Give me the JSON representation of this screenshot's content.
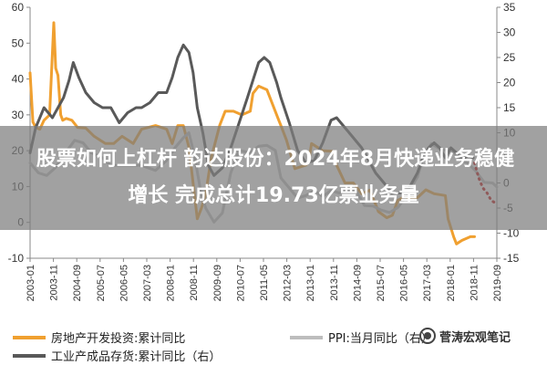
{
  "chart_data": {
    "type": "line",
    "left_axis": {
      "ylim": [
        -10,
        60
      ],
      "ticks": [
        "-10",
        "0",
        "10",
        "20",
        "30",
        "40",
        "50",
        "60"
      ]
    },
    "right_axis": {
      "ylim": [
        -15,
        35
      ],
      "ticks": [
        "-15",
        "-10",
        "-5",
        "0",
        "5",
        "10",
        "15",
        "20",
        "25",
        "30",
        "35"
      ]
    },
    "x_ticks": [
      "2003-01",
      "2003-11",
      "2004-09",
      "2005-07",
      "2006-05",
      "2007-03",
      "2008-01",
      "2008-11",
      "2009-09",
      "2010-07",
      "2011-05",
      "2012-03",
      "2013-01",
      "2013-11",
      "2014-09",
      "2015-07",
      "2016-05",
      "2017-03",
      "2018-01",
      "2018-11",
      "2019-09"
    ],
    "x_range": [
      2003.0,
      2019.75
    ],
    "series": [
      {
        "name": "房地产开发投资:累计同比",
        "axis": "left",
        "color": "#f0a030",
        "style": "solid",
        "x": [
          2003.0,
          2003.1,
          2003.2,
          2003.35,
          2003.5,
          2003.7,
          2003.85,
          2003.92,
          2004.0,
          2004.1,
          2004.17,
          2004.3,
          2004.5,
          2004.7,
          2005.0,
          2005.3,
          2005.7,
          2006.0,
          2006.3,
          2006.7,
          2007.0,
          2007.5,
          2007.9,
          2008.1,
          2008.3,
          2008.5,
          2008.7,
          2008.85,
          2009.0,
          2009.15,
          2009.3,
          2009.5,
          2009.8,
          2010.0,
          2010.3,
          2010.6,
          2010.9,
          2011.0,
          2011.2,
          2011.5,
          2011.9,
          2012.0,
          2012.2,
          2012.5,
          2012.9,
          2013.0,
          2013.1,
          2013.5,
          2013.9,
          2014.0,
          2014.3,
          2014.6,
          2014.9,
          2015.2,
          2015.5,
          2015.8,
          2016.0,
          2016.2,
          2016.4,
          2016.9,
          2017.2,
          2017.5,
          2017.9,
          2018.0,
          2018.2,
          2018.3,
          2018.5,
          2018.8,
          2018.95
        ],
        "values": [
          41.7,
          28.0,
          26.5,
          26.0,
          28.5,
          30.0,
          55.7,
          43.0,
          41.0,
          30.0,
          28.5,
          29.0,
          28.5,
          26.5,
          26.3,
          24.0,
          22.0,
          22.0,
          24.0,
          22.0,
          26.0,
          27.0,
          26.0,
          22.0,
          27.0,
          27.0,
          21.0,
          11.0,
          1.0,
          4.0,
          8.0,
          18.0,
          27.0,
          31.0,
          31.0,
          30.0,
          31.0,
          36.0,
          38.0,
          37.0,
          29.0,
          27.0,
          23.0,
          15.0,
          16.0,
          17.0,
          22.0,
          20.0,
          19.8,
          16.0,
          11.0,
          11.0,
          8.0,
          9.0,
          3.0,
          1.3,
          2.0,
          6.2,
          7.0,
          6.9,
          9.1,
          8.0,
          7.5,
          1.0,
          -4.0,
          -6.0,
          -5.0,
          -4.0,
          -4.0
        ]
      },
      {
        "name": "PPI:当月同比",
        "axis": "right",
        "color": "#bdbdbd",
        "style": "solid",
        "x": [
          2003.0,
          2003.3,
          2003.6,
          2003.9,
          2004.2,
          2004.6,
          2004.9,
          2005.2,
          2005.6,
          2005.9,
          2006.3,
          2006.7,
          2007.0,
          2007.5,
          2007.9,
          2008.2,
          2008.5,
          2008.7,
          2008.9,
          2009.1,
          2009.3,
          2009.6,
          2009.9,
          2010.2,
          2010.5,
          2010.9,
          2011.2,
          2011.5,
          2011.8,
          2012.0,
          2012.3,
          2012.6,
          2012.9,
          2013.2,
          2013.5,
          2013.8,
          2014.1,
          2014.4,
          2014.7,
          2015.0,
          2015.3,
          2015.6,
          2015.9,
          2016.2,
          2016.5,
          2016.9,
          2017.1,
          2017.4,
          2017.8,
          2018.1,
          2018.4,
          2018.7,
          2019.0,
          2019.3,
          2019.6,
          2019.75
        ],
        "values": [
          4.0,
          2.0,
          1.5,
          3.0,
          5.5,
          8.5,
          8.0,
          6.0,
          5.0,
          3.5,
          3.5,
          3.5,
          3.5,
          2.5,
          4.5,
          7.0,
          9.0,
          10.0,
          5.5,
          -1.0,
          -5.0,
          -7.8,
          -6.0,
          2.0,
          6.5,
          6.0,
          7.3,
          7.5,
          6.5,
          1.0,
          -1.0,
          -3.0,
          -2.5,
          -1.5,
          -2.7,
          -1.5,
          -2.0,
          -1.5,
          -1.5,
          -4.5,
          -4.6,
          -5.4,
          -5.9,
          -4.9,
          -2.6,
          1.2,
          5.0,
          7.8,
          6.5,
          6.9,
          4.7,
          4.0,
          2.3,
          0.1,
          0.0,
          -0.8
        ]
      },
      {
        "name": "工业产成品存货:累计同比（右）",
        "axis": "right",
        "color": "#595959",
        "style": "solid",
        "x": [
          2003.0,
          2003.2,
          2003.5,
          2003.8,
          2004.0,
          2004.2,
          2004.4,
          2004.55,
          2004.75,
          2005.0,
          2005.3,
          2005.6,
          2005.9,
          2006.2,
          2006.5,
          2006.8,
          2007.0,
          2007.3,
          2007.6,
          2007.9,
          2008.1,
          2008.3,
          2008.5,
          2008.7,
          2008.85,
          2009.0,
          2009.2,
          2009.4,
          2009.6,
          2009.9,
          2010.2,
          2010.5,
          2010.8,
          2011.0,
          2011.2,
          2011.4,
          2011.6,
          2011.85,
          2012.0,
          2012.3,
          2012.6,
          2012.9,
          2013.2,
          2013.5,
          2013.8,
          2014.0,
          2014.3,
          2014.6,
          2014.9,
          2015.1,
          2015.4,
          2015.7,
          2016.0,
          2016.3,
          2016.6,
          2016.9,
          2017.1,
          2017.3,
          2017.5,
          2017.7,
          2017.9,
          2018.1,
          2018.3,
          2018.5,
          2018.7,
          2018.9
        ],
        "values": [
          6.0,
          11.0,
          15.0,
          13.0,
          15.0,
          17.0,
          20.5,
          24.0,
          21.0,
          18.0,
          16.0,
          15.0,
          15.0,
          12.0,
          14.0,
          15.0,
          15.0,
          16.0,
          18.0,
          18.0,
          21.0,
          25.0,
          27.5,
          26.0,
          22.0,
          15.0,
          10.0,
          3.5,
          1.5,
          3.0,
          7.0,
          12.0,
          17.0,
          20.5,
          24.0,
          25.0,
          24.0,
          20.0,
          17.0,
          12.0,
          6.5,
          4.0,
          4.5,
          8.0,
          12.5,
          13.0,
          11.0,
          9.0,
          7.0,
          5.0,
          2.0,
          0.0,
          -2.0,
          -2.0,
          -1.0,
          2.0,
          5.0,
          7.0,
          8.0,
          7.0,
          5.0,
          7.0,
          6.0,
          4.5,
          5.5,
          5.0
        ]
      },
      {
        "name": "工业产成品存货:累计同比（右） 预测",
        "axis": "right",
        "color": "#c00000",
        "style": "dotted",
        "x": [
          2018.95,
          2019.1,
          2019.25,
          2019.4,
          2019.55,
          2019.7
        ],
        "values": [
          4.0,
          1.0,
          -1.0,
          -2.0,
          -3.5,
          -4.0
        ]
      }
    ],
    "legend": {
      "placement": "bottom",
      "items": [
        {
          "label": "房地产开发投资:累计同比",
          "color": "#f0a030",
          "style": "solid"
        },
        {
          "label": "PPI:当月同比（右）",
          "color": "#bdbdbd",
          "style": "solid"
        },
        {
          "label": "工业产成品存货:累计同比（右）",
          "color": "#595959",
          "style": "solid"
        }
      ]
    },
    "grid": false
  },
  "overlay": {
    "line1": "股票如何上杠杆 韵达股份：2024年8月快递业务稳健",
    "line2": "增长   完成总计19.73亿票业务量"
  },
  "watermark": {
    "text": "菅涛宏观笔记"
  }
}
